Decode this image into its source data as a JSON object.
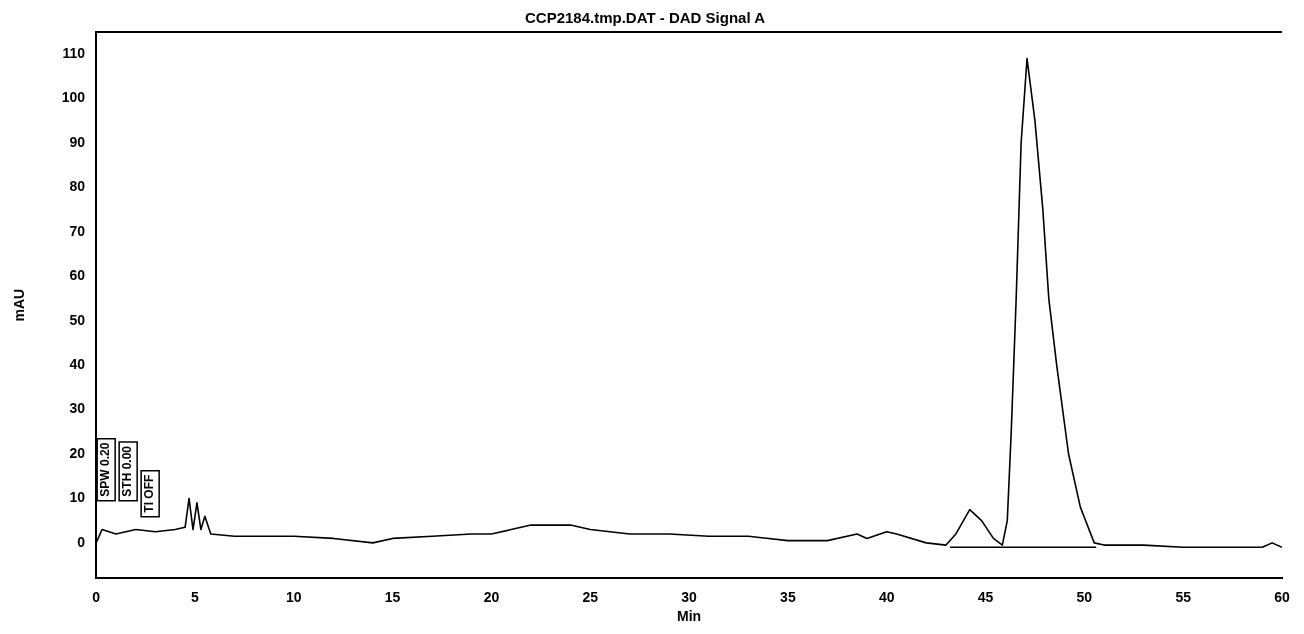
{
  "chart_data": {
    "type": "line",
    "title": "CCP2184.tmp.DAT - DAD Signal A",
    "xlabel": "Min",
    "ylabel": "mAU",
    "xlim": [
      0,
      60
    ],
    "xticks": [
      0,
      5,
      10,
      15,
      20,
      25,
      30,
      35,
      40,
      45,
      50,
      55,
      60
    ],
    "ylim": [
      -8,
      115
    ],
    "yticks": [
      0,
      10,
      20,
      30,
      40,
      50,
      60,
      70,
      80,
      90,
      100,
      110
    ],
    "grid": false,
    "legend": false,
    "marker": "none",
    "line_style": "solid",
    "annotations": [
      "SPW 0.20",
      "STH 0.00",
      "TI OFF"
    ],
    "series": [
      {
        "color": "#000000",
        "x": [
          0,
          0.3,
          1,
          2,
          3,
          4,
          4.5,
          4.7,
          4.9,
          5.1,
          5.3,
          5.5,
          5.8,
          7,
          10,
          12,
          14,
          15,
          17,
          19,
          20,
          21,
          22,
          24,
          25,
          27,
          29,
          31,
          33,
          35,
          37,
          38.5,
          39,
          40,
          40.5,
          42,
          43,
          43.5,
          44.2,
          44.8,
          45.4,
          45.85,
          46.1,
          46.3,
          46.55,
          46.8,
          47.1,
          47.5,
          47.9,
          48.2,
          48.6,
          49.2,
          49.8,
          50.5,
          51,
          53,
          55,
          57,
          59,
          59.5,
          60
        ],
        "values": [
          0,
          3,
          2,
          3,
          2.5,
          3,
          3.5,
          10,
          3,
          9,
          3,
          6,
          2,
          1.5,
          1.5,
          1,
          0,
          1,
          1.5,
          2,
          2,
          3,
          4,
          4,
          3,
          2,
          2,
          1.5,
          1.5,
          0.5,
          0.5,
          2,
          1,
          2.5,
          2,
          0,
          -0.5,
          2,
          7.5,
          5,
          1,
          -0.5,
          5,
          25,
          55,
          90,
          109,
          95,
          75,
          55,
          40,
          20,
          8,
          0,
          -0.5,
          -0.5,
          -1,
          -1,
          -1,
          0,
          -1
        ]
      },
      {
        "color": "#000000",
        "x": [
          43.2,
          50.6
        ],
        "values": [
          -1,
          -1
        ]
      }
    ]
  }
}
